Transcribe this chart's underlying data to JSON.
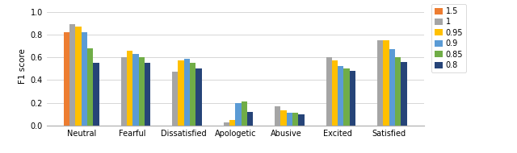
{
  "categories": [
    "Neutral",
    "Fearful",
    "Dissatisfied",
    "Apologetic",
    "Abusive",
    "Excited",
    "Satisfied"
  ],
  "series": {
    "1.5": [
      0.82,
      0.0,
      0.0,
      0.0,
      0.0,
      0.0,
      0.0
    ],
    "1": [
      0.89,
      0.6,
      0.47,
      0.03,
      0.17,
      0.6,
      0.75
    ],
    "0.95": [
      0.87,
      0.66,
      0.57,
      0.05,
      0.13,
      0.57,
      0.75
    ],
    "0.9": [
      0.82,
      0.63,
      0.59,
      0.2,
      0.11,
      0.52,
      0.67
    ],
    "0.85": [
      0.68,
      0.6,
      0.55,
      0.21,
      0.11,
      0.5,
      0.6
    ],
    "0.8": [
      0.55,
      0.55,
      0.5,
      0.12,
      0.1,
      0.48,
      0.56
    ]
  },
  "colors": {
    "1.5": "#ED7D31",
    "1": "#A5A5A5",
    "0.95": "#FFC000",
    "0.9": "#5B9BD5",
    "0.85": "#70AD47",
    "0.8": "#264478"
  },
  "legend_labels": [
    "1.5",
    "1",
    "0.95",
    "0.9",
    "0.85",
    "0.8"
  ],
  "ylabel": "F1 score",
  "ylim": [
    0,
    1.05
  ],
  "yticks": [
    0,
    0.2,
    0.4,
    0.6,
    0.8,
    1
  ],
  "background_color": "#ffffff"
}
